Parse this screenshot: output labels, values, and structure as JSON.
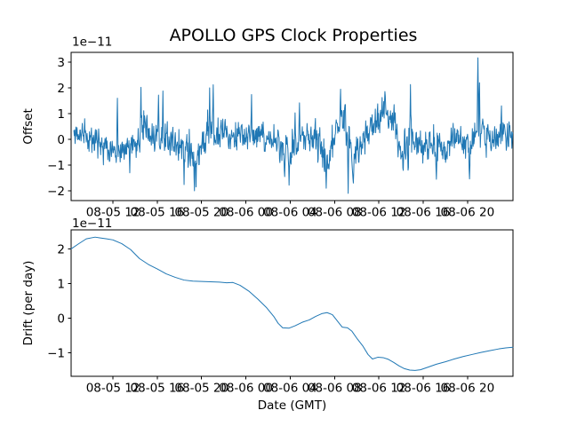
{
  "figure": {
    "title": "APOLLO GPS Clock Properties",
    "xlabel": "Date (GMT)",
    "background": "#ffffff",
    "axis_color": "#000000",
    "line_color": "#1f77b4"
  },
  "chart_data": [
    {
      "type": "line",
      "name": "offset-vs-time",
      "title": "APOLLO GPS Clock Properties",
      "ylabel": "Offset",
      "scale_label": "1e−11",
      "unit_scale": 1e-11,
      "line_color": "#1f77b4",
      "grid": false,
      "legend": null,
      "x_domain_hours": [
        0,
        39.93
      ],
      "ylim": [
        -2.38,
        3.38
      ],
      "yticks": [
        -2,
        -1,
        0,
        1,
        2,
        3
      ],
      "xtick_hours": [
        3.78,
        7.785,
        11.79,
        15.795,
        19.8,
        23.805,
        27.81,
        31.815,
        35.82
      ],
      "xtick_labels": [
        "08-05 12",
        "08-05 16",
        "08-05 20",
        "08-06 00",
        "08-06 04",
        "08-06 08",
        "08-06 12",
        "08-06 16",
        "08-06 20"
      ],
      "noise": {
        "comment": "dense noisy clock-offset trace, ~0 mean, reconstructed from envelope keypoints [hour, mean, amplitude] plus explicit extreme spikes [hour, value] read from the plot",
        "seed": 11,
        "n": 1100,
        "h_start": 0.25,
        "h_end": 39.9,
        "envelope": [
          [
            0.2,
            0.22,
            0.55
          ],
          [
            1.6,
            0.12,
            0.6
          ],
          [
            3.0,
            -0.1,
            0.55
          ],
          [
            3.9,
            -0.45,
            0.55
          ],
          [
            4.8,
            -0.35,
            0.6
          ],
          [
            5.8,
            -0.12,
            0.55
          ],
          [
            6.4,
            0.25,
            0.75
          ],
          [
            7.4,
            0.15,
            0.6
          ],
          [
            8.4,
            -0.05,
            0.6
          ],
          [
            9.6,
            -0.18,
            0.68
          ],
          [
            10.6,
            -0.55,
            0.8
          ],
          [
            11.2,
            -0.7,
            0.9
          ],
          [
            12.0,
            -0.05,
            0.7
          ],
          [
            12.9,
            0.35,
            0.85
          ],
          [
            13.8,
            0.28,
            0.7
          ],
          [
            14.9,
            0.1,
            0.6
          ],
          [
            15.9,
            0.18,
            0.72
          ],
          [
            16.9,
            0.1,
            0.62
          ],
          [
            17.8,
            0.0,
            0.6
          ],
          [
            18.9,
            -0.28,
            0.78
          ],
          [
            19.8,
            -0.38,
            0.85
          ],
          [
            20.6,
            0.08,
            0.7
          ],
          [
            21.5,
            0.18,
            0.6
          ],
          [
            22.3,
            -0.25,
            0.75
          ],
          [
            23.1,
            -0.85,
            0.85
          ],
          [
            23.7,
            -0.25,
            0.8
          ],
          [
            24.3,
            0.85,
            0.8
          ],
          [
            24.9,
            0.25,
            0.9
          ],
          [
            25.5,
            -0.95,
            0.8
          ],
          [
            26.1,
            -0.1,
            0.62
          ],
          [
            26.9,
            0.28,
            0.6
          ],
          [
            28.3,
            1.05,
            0.7
          ],
          [
            29.1,
            0.65,
            0.8
          ],
          [
            29.9,
            -0.45,
            0.7
          ],
          [
            30.7,
            -0.2,
            0.85
          ],
          [
            31.5,
            -0.1,
            0.7
          ],
          [
            32.4,
            -0.3,
            0.78
          ],
          [
            33.3,
            -0.38,
            0.78
          ],
          [
            34.3,
            -0.2,
            0.7
          ],
          [
            35.2,
            0.0,
            0.65
          ],
          [
            36.0,
            -0.3,
            0.85
          ],
          [
            36.8,
            0.5,
            1.0
          ],
          [
            37.4,
            0.0,
            0.7
          ],
          [
            38.2,
            0.1,
            0.65
          ],
          [
            39.0,
            0.18,
            0.7
          ],
          [
            39.9,
            0.0,
            0.6
          ]
        ],
        "spikes": [
          [
            4.2,
            1.6
          ],
          [
            5.3,
            -1.3
          ],
          [
            6.3,
            2.02
          ],
          [
            7.9,
            1.72
          ],
          [
            8.3,
            1.88
          ],
          [
            10.2,
            -1.76
          ],
          [
            11.15,
            -2.0
          ],
          [
            11.3,
            -1.85
          ],
          [
            12.5,
            2.0
          ],
          [
            12.85,
            2.12
          ],
          [
            16.3,
            1.74
          ],
          [
            19.3,
            -1.45
          ],
          [
            19.7,
            -1.78
          ],
          [
            20.65,
            1.42
          ],
          [
            23.05,
            -1.9
          ],
          [
            24.35,
            1.95
          ],
          [
            25.05,
            -2.1
          ],
          [
            25.5,
            -1.7
          ],
          [
            28.35,
            1.86
          ],
          [
            30.45,
            -1.2
          ],
          [
            30.65,
            2.13
          ],
          [
            33.0,
            -1.55
          ],
          [
            36.0,
            -1.54
          ],
          [
            36.75,
            3.17
          ],
          [
            36.92,
            2.2
          ],
          [
            38.9,
            1.3
          ]
        ]
      }
    },
    {
      "type": "line",
      "name": "drift-vs-time",
      "ylabel": "Drift (per day)",
      "xlabel": "Date (GMT)",
      "scale_label": "1e−11",
      "unit_scale": 1e-11,
      "line_color": "#1f77b4",
      "grid": false,
      "legend": null,
      "x_domain_hours": [
        0,
        39.93
      ],
      "ylim": [
        -1.68,
        2.55
      ],
      "yticks": [
        -1,
        0,
        1,
        2
      ],
      "xtick_hours": [
        3.78,
        7.785,
        11.79,
        15.795,
        19.8,
        23.805,
        27.81,
        31.815,
        35.82
      ],
      "xtick_labels": [
        "08-05 12",
        "08-05 16",
        "08-05 20",
        "08-06 00",
        "08-06 04",
        "08-06 08",
        "08-06 12",
        "08-06 16",
        "08-06 20"
      ],
      "series": {
        "hours": [
          0,
          0.64,
          1.37,
          2.17,
          2.57,
          3.21,
          3.78,
          4.58,
          5.38,
          6.18,
          6.99,
          7.79,
          8.59,
          9.4,
          10.2,
          11.0,
          11.8,
          12.6,
          13.4,
          14.06,
          14.62,
          15.26,
          16.06,
          16.87,
          17.67,
          18.31,
          18.71,
          19.12,
          19.68,
          20.24,
          20.88,
          21.53,
          22.09,
          22.65,
          23.13,
          23.61,
          24.1,
          24.5,
          24.98,
          25.38,
          25.86,
          26.35,
          26.83,
          27.23,
          27.71,
          28.19,
          28.67,
          29.16,
          29.64,
          30.12,
          30.6,
          31.08,
          31.57,
          32.21,
          33.01,
          33.82,
          34.62,
          35.42,
          36.22,
          37.03,
          37.83,
          38.63,
          39.28,
          39.92
        ],
        "values": [
          2.0,
          2.14,
          2.29,
          2.34,
          2.32,
          2.29,
          2.26,
          2.15,
          1.98,
          1.72,
          1.55,
          1.42,
          1.28,
          1.18,
          1.1,
          1.07,
          1.06,
          1.05,
          1.04,
          1.02,
          1.03,
          0.95,
          0.78,
          0.55,
          0.3,
          0.05,
          -0.15,
          -0.28,
          -0.29,
          -0.22,
          -0.12,
          -0.05,
          0.05,
          0.13,
          0.16,
          0.1,
          -0.1,
          -0.26,
          -0.28,
          -0.38,
          -0.6,
          -0.8,
          -1.05,
          -1.18,
          -1.13,
          -1.14,
          -1.19,
          -1.28,
          -1.38,
          -1.46,
          -1.5,
          -1.51,
          -1.49,
          -1.42,
          -1.33,
          -1.26,
          -1.18,
          -1.11,
          -1.05,
          -0.99,
          -0.94,
          -0.89,
          -0.86,
          -0.84
        ]
      }
    }
  ]
}
